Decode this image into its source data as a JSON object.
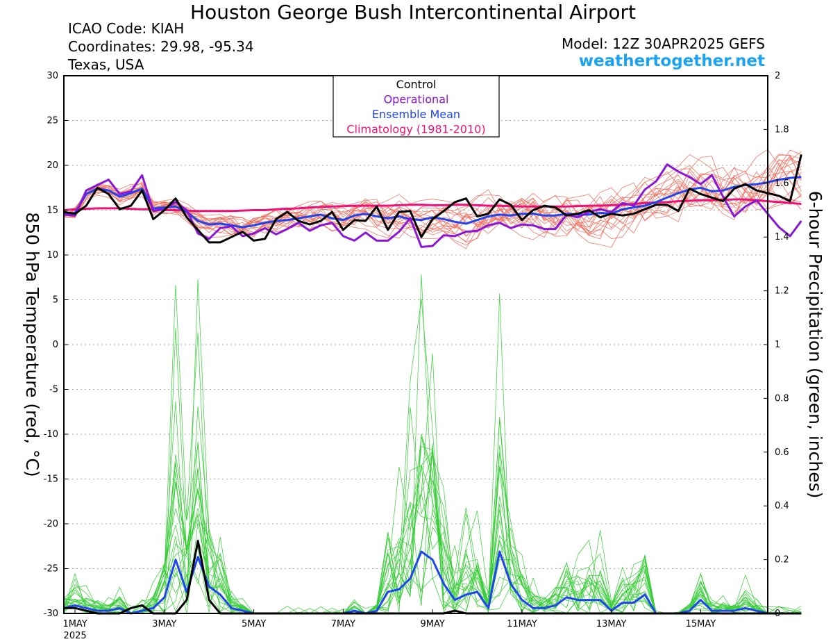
{
  "header": {
    "title": "Houston George Bush Intercontinental Airport",
    "icao": "ICAO Code: KIAH",
    "coordinates": "Coordinates: 29.98, -95.34",
    "region": "Texas, USA",
    "model": "Model: 12Z 30APR2025 GEFS",
    "site": "weathertogether.net"
  },
  "colors": {
    "member_temp": "#f06a5a",
    "member_precip": "#33cc33",
    "control": "#000000",
    "operational": "#8a16d8",
    "ensemble_mean": "#1f45f0",
    "climatology": "#ee1177",
    "site": "#1aa3f0"
  },
  "chart_data": {
    "type": "line",
    "ylabel_left": "850 hPa Temperature (red, °C)",
    "ylabel_right": "6-hour Precipitation (green, inches)",
    "y_left_range": [
      -30,
      30
    ],
    "y_right_range": [
      0,
      2
    ],
    "y_left_ticks": [
      "30",
      "25",
      "20",
      "15",
      "10",
      "5",
      "0",
      "-5",
      "-10",
      "-15",
      "-20",
      "-25",
      "-30"
    ],
    "y_right_ticks": [
      "2",
      "1.8",
      "1.6",
      "1.4",
      "1.2",
      "1",
      "0.8",
      "0.6",
      "0.4",
      "0.2",
      "0"
    ],
    "x_range_days": [
      30.75,
      46.5
    ],
    "x_tick_days": [
      31,
      33,
      35,
      37,
      39,
      41,
      43,
      45
    ],
    "x_tick_labels": [
      "1MAY",
      "3MAY",
      "5MAY",
      "7MAY",
      "9MAY",
      "11MAY",
      "13MAY",
      "15MAY"
    ],
    "x_sublabel": "2025",
    "grid": "dotted horizontal",
    "legend": {
      "position": "top-center",
      "entries": [
        {
          "label": "Control",
          "key": "control"
        },
        {
          "label": "Operational",
          "key": "operational"
        },
        {
          "label": "Ensemble Mean",
          "key": "ensemble_mean"
        },
        {
          "label": "Climatology (1981-2010)",
          "key": "climatology"
        }
      ]
    },
    "x_step_days": 0.25,
    "x_start_day": 30.75,
    "series": [
      {
        "key": "control",
        "axis": "left",
        "values": [
          14.8,
          14.6,
          15.5,
          17.5,
          16.8,
          15.1,
          15.5,
          17.2,
          14.0,
          15.0,
          16.3,
          14.2,
          12.8,
          11.4,
          11.4,
          12.0,
          12.6,
          11.6,
          11.8,
          14.0,
          14.8,
          13.8,
          13.4,
          13.8,
          14.8,
          12.8,
          13.9,
          13.8,
          15.4,
          12.8,
          14.8,
          14.9,
          12.0,
          14.0,
          14.9,
          15.9,
          16.3,
          14.3,
          14.6,
          16.2,
          15.6,
          13.9,
          15.0,
          15.5,
          15.3,
          14.4,
          14.6,
          15.0,
          14.2,
          14.6,
          14.4,
          14.6,
          15.1,
          15.6,
          15.6,
          14.9,
          17.4,
          16.8,
          16.4,
          16.0,
          17.4,
          17.9,
          17.2,
          16.9,
          16.6,
          16.0,
          21.2
        ]
      },
      {
        "key": "operational",
        "axis": "left",
        "values": [
          14.5,
          14.4,
          17.2,
          17.8,
          18.4,
          16.8,
          17.1,
          18.9,
          14.9,
          15.1,
          15.9,
          15.0,
          12.4,
          11.8,
          13.0,
          13.2,
          12.1,
          12.4,
          13.0,
          12.3,
          12.9,
          13.6,
          12.7,
          13.3,
          13.6,
          12.1,
          11.6,
          12.5,
          11.6,
          11.6,
          12.6,
          14.1,
          10.9,
          11.0,
          12.2,
          12.1,
          12.6,
          12.7,
          13.3,
          13.6,
          13.0,
          13.4,
          13.3,
          12.9,
          12.9,
          14.5,
          14.2,
          14.8,
          15.1,
          14.8,
          15.8,
          15.5,
          17.3,
          18.2,
          20.1,
          19.3,
          18.7,
          17.9,
          18.9,
          16.5,
          14.3,
          15.4,
          16.1,
          14.6,
          13.1,
          12.1,
          13.8
        ]
      },
      {
        "key": "ensemble_mean",
        "axis": "left",
        "values": [
          14.6,
          14.7,
          16.8,
          17.4,
          17.2,
          16.5,
          16.9,
          17.4,
          15.2,
          15.3,
          15.4,
          14.8,
          13.8,
          13.4,
          13.5,
          13.3,
          13.1,
          13.3,
          13.6,
          13.8,
          13.9,
          14.1,
          14.3,
          14.5,
          14.1,
          13.9,
          14.4,
          14.6,
          14.3,
          14.1,
          14.3,
          14.0,
          13.9,
          14.2,
          14.0,
          13.7,
          13.5,
          13.9,
          14.3,
          14.5,
          14.4,
          14.6,
          14.6,
          14.4,
          14.4,
          14.6,
          14.5,
          14.5,
          14.7,
          14.6,
          15.1,
          15.3,
          15.5,
          15.9,
          16.4,
          16.9,
          17.3,
          17.5,
          17.1,
          17.2,
          17.6,
          17.8,
          17.9,
          18.1,
          18.4,
          18.6,
          18.7
        ]
      },
      {
        "key": "climatology",
        "axis": "left",
        "values": [
          15.0,
          15.1,
          15.15,
          15.2,
          15.2,
          15.2,
          15.15,
          15.1,
          15.1,
          15.0,
          15.0,
          14.95,
          14.9,
          14.9,
          14.9,
          14.9,
          14.95,
          15.0,
          15.0,
          15.1,
          15.15,
          15.2,
          15.3,
          15.35,
          15.4,
          15.45,
          15.5,
          15.5,
          15.5,
          15.5,
          15.55,
          15.6,
          15.6,
          15.55,
          15.55,
          15.6,
          15.6,
          15.55,
          15.5,
          15.5,
          15.45,
          15.4,
          15.4,
          15.4,
          15.4,
          15.4,
          15.45,
          15.5,
          15.5,
          15.55,
          15.6,
          15.7,
          15.8,
          15.85,
          15.9,
          16.0,
          16.05,
          16.1,
          16.1,
          16.15,
          16.2,
          16.2,
          16.1,
          16.0,
          15.9,
          15.8,
          15.7
        ]
      },
      {
        "key": "control",
        "axis": "right",
        "values": [
          0.02,
          0.02,
          0.01,
          0.0,
          0.0,
          0.0,
          0.02,
          0.03,
          0.0,
          0.0,
          0.0,
          0.05,
          0.27,
          0.05,
          0.0,
          0.0,
          0.0,
          0.0,
          0.0,
          0.0,
          0.0,
          0.0,
          0.0,
          0.0,
          0.0,
          0.0,
          0.0,
          0.0,
          0.0,
          0.0,
          0.0,
          0.0,
          0.0,
          0.0,
          0.0,
          0.01,
          0.0,
          0.0,
          0.0,
          0.0,
          0.0,
          0.0,
          0.0,
          0.0,
          0.0,
          0.0,
          0.0,
          0.0,
          0.0,
          0.0,
          0.0,
          0.0,
          0.0,
          0.0,
          0.0,
          0.0,
          0.0,
          0.0,
          0.0,
          0.0,
          0.0,
          0.0,
          0.0,
          0.0,
          0.0,
          0.0,
          0.0
        ]
      },
      {
        "key": "ensemble_mean",
        "axis": "right",
        "values": [
          0.02,
          0.03,
          0.02,
          0.01,
          0.01,
          0.02,
          0.0,
          0.01,
          0.02,
          0.06,
          0.2,
          0.08,
          0.21,
          0.1,
          0.07,
          0.02,
          0.01,
          0.0,
          0.0,
          0.0,
          0.0,
          0.0,
          0.0,
          0.0,
          0.0,
          0.0,
          0.01,
          0.0,
          0.01,
          0.08,
          0.09,
          0.13,
          0.23,
          0.2,
          0.11,
          0.05,
          0.07,
          0.08,
          0.02,
          0.23,
          0.11,
          0.05,
          0.02,
          0.02,
          0.03,
          0.06,
          0.05,
          0.05,
          0.05,
          0.01,
          0.04,
          0.04,
          0.07,
          0.0,
          0.0,
          0.0,
          0.01,
          0.05,
          0.01,
          0.01,
          0.01,
          0.02,
          0.01,
          0.0,
          0.0,
          0.0,
          0.0
        ]
      }
    ]
  }
}
